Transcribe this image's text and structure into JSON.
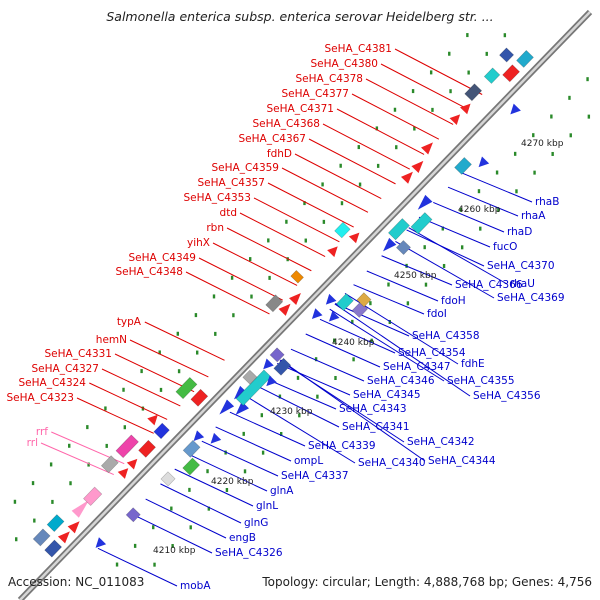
{
  "title": "Salmonella enterica subsp. enterica serovar Heidelberg str. ...",
  "footer": {
    "accession": "Accession: NC_011083",
    "summary": "Topology: circular; Length: 4,888,768 bp; Genes: 4,756"
  },
  "colors": {
    "top_strand_labels": "#dd0000",
    "bottom_strand_labels": "#0000cc",
    "rna_labels": "#ff66aa",
    "backbone": "#999999"
  },
  "kbp_markers": [
    "4210 kbp",
    "4220 kbp",
    "4230 kbp",
    "4240 kbp",
    "4250 kbp",
    "4260 kbp",
    "4270 kbp"
  ],
  "top_labels": [
    "SeHA_C4381",
    "SeHA_C4380",
    "SeHA_C4378",
    "SeHA_C4377",
    "SeHA_C4371",
    "SeHA_C4368",
    "SeHA_C4367",
    "fdhD",
    "SeHA_C4359",
    "SeHA_C4357",
    "SeHA_C4353",
    "dtd",
    "rbn",
    "yihX",
    "SeHA_C4349",
    "SeHA_C4348",
    "typA",
    "hemN",
    "SeHA_C4331",
    "SeHA_C4327",
    "SeHA_C4324",
    "SeHA_C4323"
  ],
  "rna_labels": [
    "rrf",
    "rrl"
  ],
  "bottom_labels": [
    "rhaB",
    "rhaA",
    "rhaD",
    "fucO",
    "SeHA_C4370",
    "rhaU",
    "SeHA_C4366",
    "SeHA_C4369",
    "fdoH",
    "fdoI",
    "SeHA_C4358",
    "SeHA_C4354",
    "fdhE",
    "SeHA_C4347",
    "SeHA_C4355",
    "SeHA_C4346",
    "SeHA_C4356",
    "SeHA_C4345",
    "SeHA_C4343",
    "SeHA_C4341",
    "SeHA_C4342",
    "SeHA_C4339",
    "SeHA_C4344",
    "SeHA_C4340",
    "ompL",
    "SeHA_C4337",
    "glnA",
    "glnL",
    "glnG",
    "engB",
    "SeHA_C4326",
    "mobA"
  ]
}
